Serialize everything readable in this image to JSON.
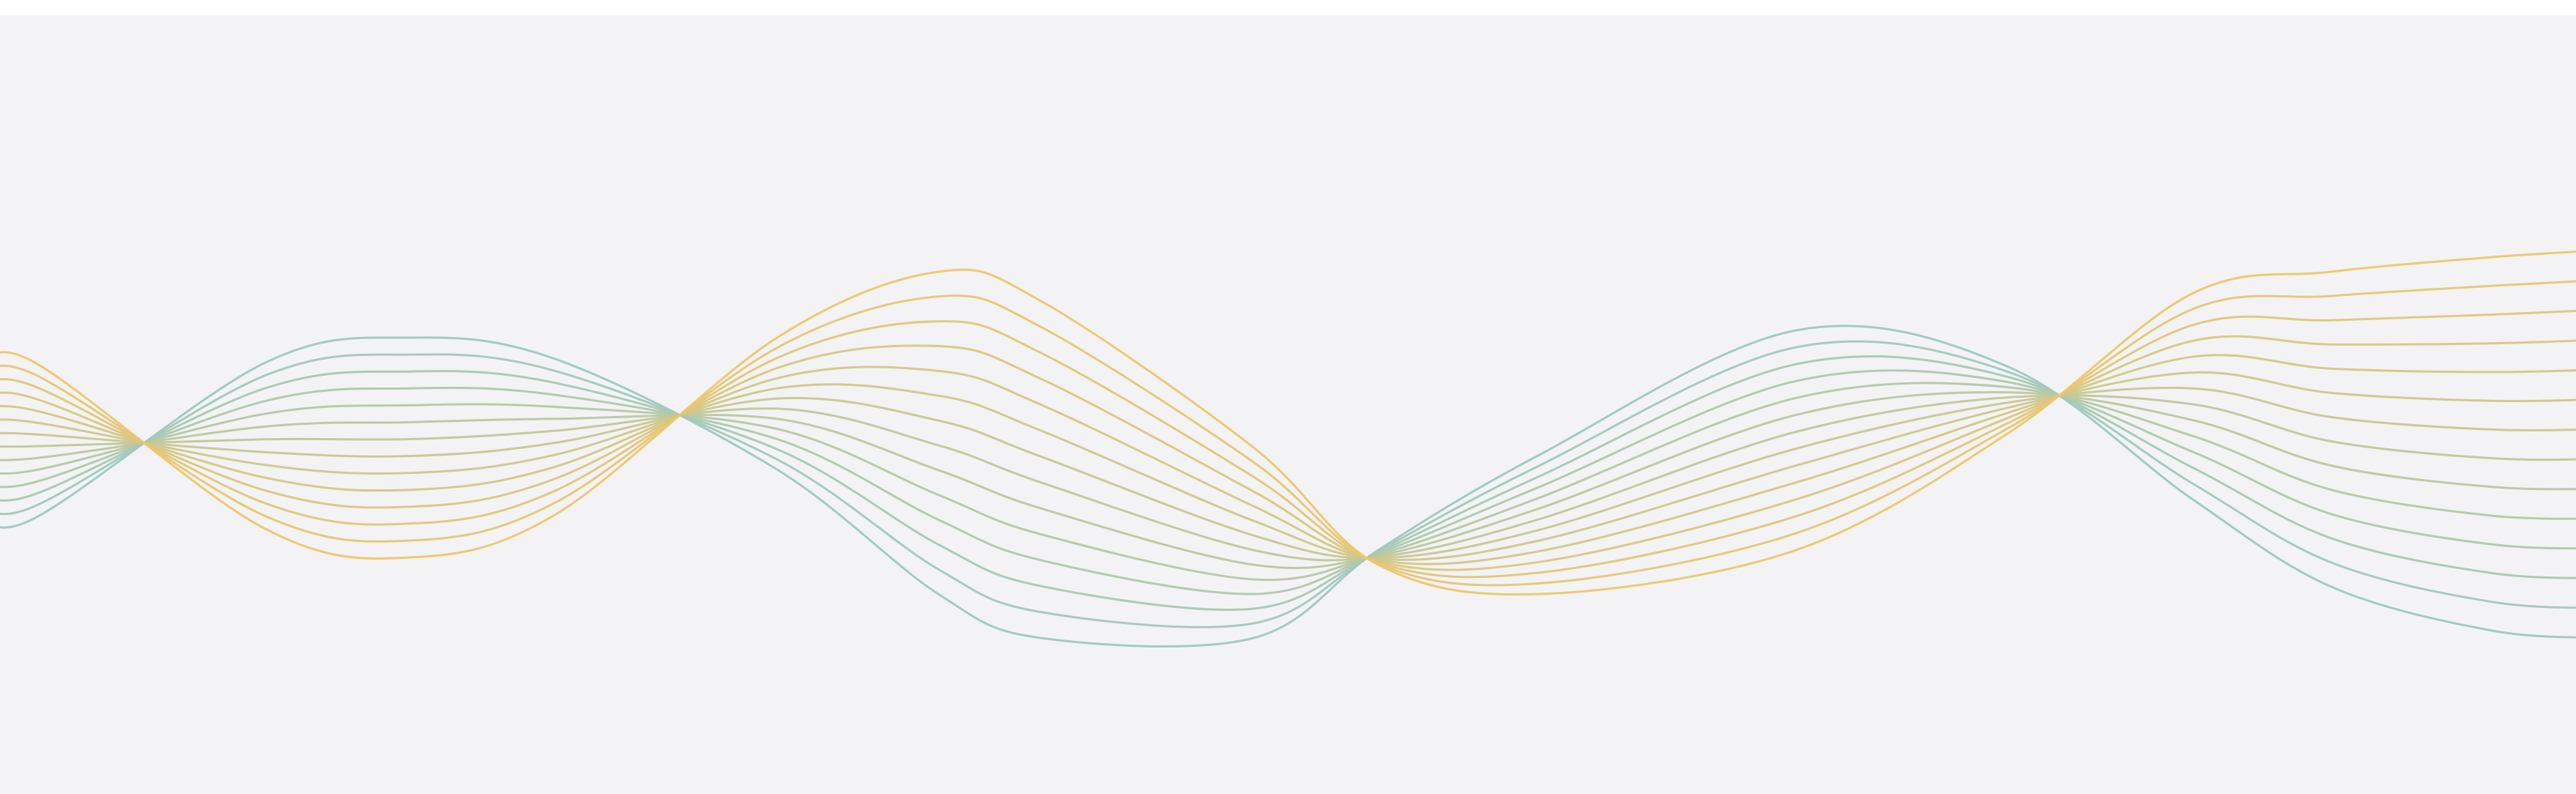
{
  "artwork": {
    "description_visible_text": "",
    "strand_count": 14,
    "palette": {
      "background": "#f3f3f5",
      "teal": "#9cc8c0",
      "gold": "#ecc66a"
    }
  }
}
